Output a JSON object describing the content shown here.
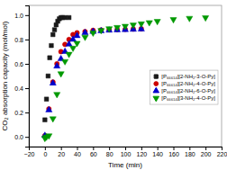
{
  "chart_data": {
    "type": "scatter",
    "xlabel": "Time (min)",
    "ylabel": "CO₂ absorption capacity (mol/mol)",
    "xlim": [
      -20,
      220
    ],
    "ylim": [
      -0.08,
      1.08
    ],
    "xticks": [
      {
        "value": -20,
        "label": "−20"
      },
      0,
      20,
      40,
      60,
      80,
      100,
      120,
      140,
      160,
      180,
      200,
      220
    ],
    "yticks": [
      {
        "value": 0.0,
        "label": "0.0"
      },
      0.2,
      0.4,
      0.6,
      0.8,
      {
        "value": 1.0,
        "label": "1.0"
      }
    ],
    "grid": false,
    "legend": "right",
    "series": [
      {
        "name": "[P₆₆₆₁₄][2-NH₂-3-O-Py]",
        "color": "#1a1a1a",
        "marker": "square",
        "x": [
          0,
          2,
          4,
          6,
          8,
          10,
          12,
          14,
          16,
          18,
          20,
          22,
          25,
          30
        ],
        "values": [
          0.14,
          0.31,
          0.5,
          0.65,
          0.75,
          0.84,
          0.88,
          0.92,
          0.95,
          0.97,
          0.98,
          0.98,
          0.98,
          0.98
        ]
      },
      {
        "name": "[P₆₆₆₁₄][2-NH₂-4-O-Py]",
        "color": "#cc0000",
        "marker": "circle",
        "x": [
          0,
          5,
          10,
          15,
          20,
          25,
          30,
          35,
          40,
          50,
          60,
          70,
          80,
          90,
          100,
          110,
          120
        ],
        "values": [
          0.01,
          0.23,
          0.45,
          0.6,
          0.7,
          0.76,
          0.8,
          0.84,
          0.855,
          0.865,
          0.875,
          0.878,
          0.88,
          0.882,
          0.884,
          0.886,
          0.888
        ]
      },
      {
        "name": "[P₆₆₆₁₄][2-NH₂-6-O-Py]",
        "color": "#0000cc",
        "marker": "triangle-up",
        "x": [
          0,
          5,
          10,
          15,
          20,
          25,
          30,
          35,
          40,
          50,
          60,
          70,
          80,
          90,
          100,
          110,
          120
        ],
        "values": [
          0.01,
          0.22,
          0.44,
          0.58,
          0.64,
          0.7,
          0.76,
          0.8,
          0.83,
          0.855,
          0.865,
          0.87,
          0.875,
          0.878,
          0.88,
          0.882,
          0.884
        ]
      },
      {
        "name": "[P₆₆₆₁₄][3-NH₂-4-O-Py]",
        "color": "#009900",
        "marker": "triangle-down",
        "x": [
          0,
          2,
          5,
          10,
          15,
          20,
          25,
          30,
          35,
          40,
          50,
          60,
          70,
          80,
          90,
          100,
          110,
          120,
          130,
          140,
          160,
          180,
          200
        ],
        "values": [
          -0.01,
          0.0,
          0.01,
          0.15,
          0.35,
          0.52,
          0.62,
          0.68,
          0.73,
          0.77,
          0.82,
          0.855,
          0.875,
          0.89,
          0.9,
          0.91,
          0.92,
          0.93,
          0.94,
          0.95,
          0.965,
          0.975,
          0.98
        ]
      }
    ]
  }
}
